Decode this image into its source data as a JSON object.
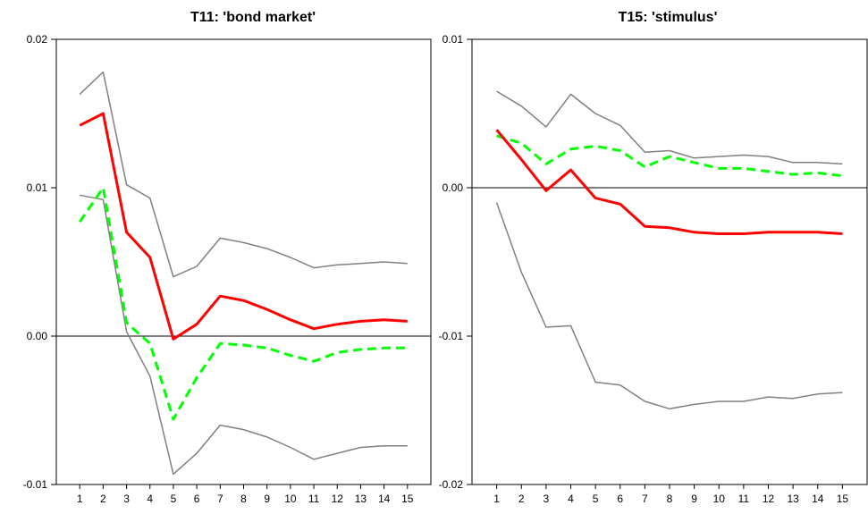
{
  "chart_data": [
    {
      "type": "line",
      "title": "T11: 'bond market'",
      "xlabel": "",
      "ylabel": "",
      "x": [
        1,
        2,
        3,
        4,
        5,
        6,
        7,
        8,
        9,
        10,
        11,
        12,
        13,
        14,
        15
      ],
      "ylim": [
        -0.01,
        0.02
      ],
      "yticks": [
        -0.01,
        0.0,
        0.01,
        0.02
      ],
      "ytick_labels": [
        "-0.01",
        "0.00",
        "0.01",
        "0.02"
      ],
      "zero_line": true,
      "grid": false,
      "series": [
        {
          "role": "upper-band",
          "color": "#808080",
          "style": "solid",
          "values": [
            0.0163,
            0.0178,
            0.0102,
            0.0093,
            0.004,
            0.0047,
            0.0066,
            0.0063,
            0.0059,
            0.0053,
            0.0046,
            0.0048,
            0.0049,
            0.005,
            0.0049
          ]
        },
        {
          "role": "lower-band",
          "color": "#808080",
          "style": "solid",
          "values": [
            0.0095,
            0.0092,
            0.0003,
            -0.0027,
            -0.0093,
            -0.0079,
            -0.006,
            -0.0063,
            -0.0068,
            -0.0075,
            -0.0083,
            -0.0079,
            -0.0075,
            -0.0074,
            -0.0074
          ]
        },
        {
          "role": "dashed-response",
          "color": "#00ff00",
          "style": "dashed",
          "values": [
            0.0077,
            0.01,
            0.0009,
            -0.0005,
            -0.0056,
            -0.0028,
            -0.0005,
            -0.0006,
            -0.0008,
            -0.0013,
            -0.0017,
            -0.0011,
            -0.0009,
            -0.0008,
            -0.0008
          ]
        },
        {
          "role": "response",
          "color": "#ff0000",
          "style": "solid",
          "values": [
            0.0142,
            0.015,
            0.007,
            0.0053,
            -0.0002,
            0.0008,
            0.0027,
            0.0024,
            0.0018,
            0.0011,
            0.0005,
            0.0008,
            0.001,
            0.0011,
            0.001
          ]
        }
      ]
    },
    {
      "type": "line",
      "title": "T15: 'stimulus'",
      "xlabel": "",
      "ylabel": "",
      "x": [
        1,
        2,
        3,
        4,
        5,
        6,
        7,
        8,
        9,
        10,
        11,
        12,
        13,
        14,
        15
      ],
      "ylim": [
        -0.02,
        0.01
      ],
      "yticks": [
        -0.02,
        -0.01,
        0.0,
        0.01
      ],
      "ytick_labels": [
        "-0.02",
        "-0.01",
        "0.00",
        "0.01"
      ],
      "zero_line": true,
      "grid": false,
      "series": [
        {
          "role": "upper-band",
          "color": "#808080",
          "style": "solid",
          "values": [
            0.0065,
            0.0055,
            0.0041,
            0.0063,
            0.005,
            0.0042,
            0.0024,
            0.0025,
            0.002,
            0.0021,
            0.0022,
            0.0021,
            0.0017,
            0.0017,
            0.0016
          ]
        },
        {
          "role": "lower-band",
          "color": "#808080",
          "style": "solid",
          "values": [
            -0.001,
            -0.0057,
            -0.0094,
            -0.0093,
            -0.0131,
            -0.0133,
            -0.0144,
            -0.0149,
            -0.0146,
            -0.0144,
            -0.0144,
            -0.0141,
            -0.0142,
            -0.0139,
            -0.0138
          ]
        },
        {
          "role": "dashed-response",
          "color": "#00ff00",
          "style": "dashed",
          "values": [
            0.0035,
            0.003,
            0.0016,
            0.0026,
            0.0028,
            0.0025,
            0.0014,
            0.0021,
            0.0017,
            0.0013,
            0.0013,
            0.0011,
            0.0009,
            0.001,
            0.0008
          ]
        },
        {
          "role": "response",
          "color": "#ff0000",
          "style": "solid",
          "values": [
            0.0039,
            0.0019,
            -0.0002,
            0.0012,
            -0.0007,
            -0.0011,
            -0.0026,
            -0.0027,
            -0.003,
            -0.0031,
            -0.0031,
            -0.003,
            -0.003,
            -0.003,
            -0.0031
          ]
        }
      ]
    }
  ]
}
